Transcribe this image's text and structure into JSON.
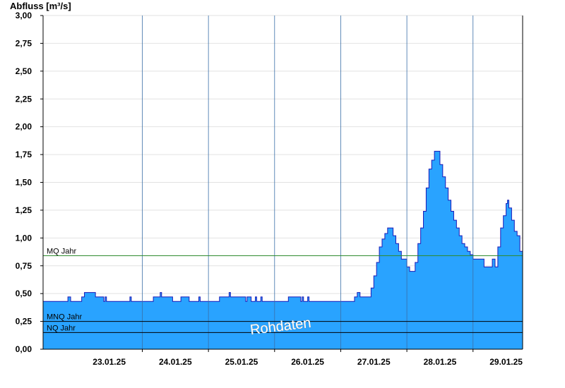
{
  "chart_data": {
    "type": "area",
    "ylabel": "Abfluss [m³/s]",
    "ylim": [
      0,
      3.0
    ],
    "xlim": [
      "2025-01-22T12:00",
      "2025-01-29T18:00"
    ],
    "y_ticks": [
      "0,00",
      "0,25",
      "0,50",
      "0,75",
      "1,00",
      "1,25",
      "1,50",
      "1,75",
      "2,00",
      "2,25",
      "2,50",
      "2,75",
      "3,00"
    ],
    "x_tick_labels": [
      "23.01.25",
      "24.01.25",
      "25.01.25",
      "26.01.25",
      "27.01.25",
      "28.01.25",
      "29.01.25"
    ],
    "grid": true,
    "series": [
      {
        "values": [
          [
            "2025-01-22T12:00",
            0.43
          ],
          [
            "2025-01-22T20:00",
            0.43
          ],
          [
            "2025-01-22T21:00",
            0.47
          ],
          [
            "2025-01-22T22:00",
            0.43
          ],
          [
            "2025-01-23T01:00",
            0.43
          ],
          [
            "2025-01-23T02:00",
            0.47
          ],
          [
            "2025-01-23T03:00",
            0.51
          ],
          [
            "2025-01-23T06:00",
            0.51
          ],
          [
            "2025-01-23T07:00",
            0.47
          ],
          [
            "2025-01-23T09:00",
            0.47
          ],
          [
            "2025-01-23T10:00",
            0.43
          ],
          [
            "2025-01-23T10:30",
            0.47
          ],
          [
            "2025-01-23T11:00",
            0.43
          ],
          [
            "2025-01-23T19:00",
            0.43
          ],
          [
            "2025-01-23T19:30",
            0.47
          ],
          [
            "2025-01-23T20:00",
            0.43
          ],
          [
            "2025-01-24T03:00",
            0.43
          ],
          [
            "2025-01-24T04:00",
            0.47
          ],
          [
            "2025-01-24T06:00",
            0.47
          ],
          [
            "2025-01-24T06:30",
            0.51
          ],
          [
            "2025-01-24T07:00",
            0.47
          ],
          [
            "2025-01-24T10:00",
            0.47
          ],
          [
            "2025-01-24T11:00",
            0.43
          ],
          [
            "2025-01-24T13:00",
            0.43
          ],
          [
            "2025-01-24T14:00",
            0.47
          ],
          [
            "2025-01-24T16:00",
            0.47
          ],
          [
            "2025-01-24T17:00",
            0.43
          ],
          [
            "2025-01-24T20:00",
            0.43
          ],
          [
            "2025-01-24T20:30",
            0.47
          ],
          [
            "2025-01-24T21:00",
            0.43
          ],
          [
            "2025-01-25T03:00",
            0.43
          ],
          [
            "2025-01-25T04:00",
            0.47
          ],
          [
            "2025-01-25T07:00",
            0.47
          ],
          [
            "2025-01-25T07:30",
            0.51
          ],
          [
            "2025-01-25T08:00",
            0.47
          ],
          [
            "2025-01-25T13:00",
            0.47
          ],
          [
            "2025-01-25T13:30",
            0.43
          ],
          [
            "2025-01-25T14:00",
            0.47
          ],
          [
            "2025-01-25T15:00",
            0.47
          ],
          [
            "2025-01-25T15:30",
            0.43
          ],
          [
            "2025-01-25T16:30",
            0.43
          ],
          [
            "2025-01-25T17:00",
            0.47
          ],
          [
            "2025-01-25T17:30",
            0.43
          ],
          [
            "2025-01-25T18:30",
            0.43
          ],
          [
            "2025-01-25T19:00",
            0.47
          ],
          [
            "2025-01-25T19:30",
            0.43
          ],
          [
            "2025-01-26T04:00",
            0.43
          ],
          [
            "2025-01-26T05:00",
            0.47
          ],
          [
            "2025-01-26T09:00",
            0.47
          ],
          [
            "2025-01-26T09:30",
            0.43
          ],
          [
            "2025-01-26T10:00",
            0.47
          ],
          [
            "2025-01-26T10:30",
            0.43
          ],
          [
            "2025-01-26T11:30",
            0.43
          ],
          [
            "2025-01-26T12:00",
            0.47
          ],
          [
            "2025-01-26T12:30",
            0.43
          ],
          [
            "2025-01-27T04:00",
            0.43
          ],
          [
            "2025-01-27T05:00",
            0.47
          ],
          [
            "2025-01-27T06:00",
            0.51
          ],
          [
            "2025-01-27T07:00",
            0.47
          ],
          [
            "2025-01-27T10:00",
            0.47
          ],
          [
            "2025-01-27T11:00",
            0.55
          ],
          [
            "2025-01-27T12:00",
            0.66
          ],
          [
            "2025-01-27T13:00",
            0.78
          ],
          [
            "2025-01-27T14:00",
            0.92
          ],
          [
            "2025-01-27T15:00",
            0.99
          ],
          [
            "2025-01-27T16:00",
            1.04
          ],
          [
            "2025-01-27T17:00",
            1.09
          ],
          [
            "2025-01-27T18:00",
            1.09
          ],
          [
            "2025-01-27T19:00",
            1.02
          ],
          [
            "2025-01-27T20:00",
            0.95
          ],
          [
            "2025-01-27T21:00",
            0.88
          ],
          [
            "2025-01-27T22:00",
            0.81
          ],
          [
            "2025-01-27T23:00",
            0.81
          ],
          [
            "2025-01-28T00:00",
            0.74
          ],
          [
            "2025-01-28T01:00",
            0.7
          ],
          [
            "2025-01-28T02:00",
            0.7
          ],
          [
            "2025-01-28T03:00",
            0.78
          ],
          [
            "2025-01-28T04:00",
            0.95
          ],
          [
            "2025-01-28T05:00",
            1.09
          ],
          [
            "2025-01-28T06:00",
            1.24
          ],
          [
            "2025-01-28T07:00",
            1.45
          ],
          [
            "2025-01-28T08:00",
            1.62
          ],
          [
            "2025-01-28T09:00",
            1.7
          ],
          [
            "2025-01-28T10:00",
            1.78
          ],
          [
            "2025-01-28T11:00",
            1.78
          ],
          [
            "2025-01-28T12:00",
            1.66
          ],
          [
            "2025-01-28T13:00",
            1.55
          ],
          [
            "2025-01-28T14:00",
            1.45
          ],
          [
            "2025-01-28T15:00",
            1.34
          ],
          [
            "2025-01-28T16:00",
            1.24
          ],
          [
            "2025-01-28T17:00",
            1.16
          ],
          [
            "2025-01-28T18:00",
            1.09
          ],
          [
            "2025-01-28T19:00",
            1.02
          ],
          [
            "2025-01-28T20:00",
            0.95
          ],
          [
            "2025-01-28T21:00",
            0.92
          ],
          [
            "2025-01-28T22:00",
            0.88
          ],
          [
            "2025-01-28T23:00",
            0.85
          ],
          [
            "2025-01-29T00:00",
            0.81
          ],
          [
            "2025-01-29T03:00",
            0.81
          ],
          [
            "2025-01-29T04:00",
            0.74
          ],
          [
            "2025-01-29T06:00",
            0.74
          ],
          [
            "2025-01-29T07:00",
            0.81
          ],
          [
            "2025-01-29T08:00",
            0.74
          ],
          [
            "2025-01-29T09:00",
            0.92
          ],
          [
            "2025-01-29T10:00",
            1.09
          ],
          [
            "2025-01-29T11:00",
            1.2
          ],
          [
            "2025-01-29T12:00",
            1.31
          ],
          [
            "2025-01-29T12:30",
            1.34
          ],
          [
            "2025-01-29T13:00",
            1.27
          ],
          [
            "2025-01-29T14:00",
            1.16
          ],
          [
            "2025-01-29T15:00",
            1.06
          ],
          [
            "2025-01-29T16:00",
            1.02
          ],
          [
            "2025-01-29T17:00",
            0.88
          ],
          [
            "2025-01-29T18:00",
            0.88
          ]
        ]
      }
    ],
    "reference_lines": [
      {
        "label": "MQ Jahr",
        "value": 0.84,
        "color": "#2e8b2e"
      },
      {
        "label": "MNQ Jahr",
        "value": 0.25,
        "color": "#000000"
      },
      {
        "label": "NQ Jahr",
        "value": 0.15,
        "color": "#000000"
      }
    ],
    "annotation": "Rohdaten",
    "colors": {
      "fill": "#29a3ff",
      "line": "#1a1ab8",
      "grid": "#e2e2e2",
      "day_separator": "#3a6fa8"
    }
  }
}
